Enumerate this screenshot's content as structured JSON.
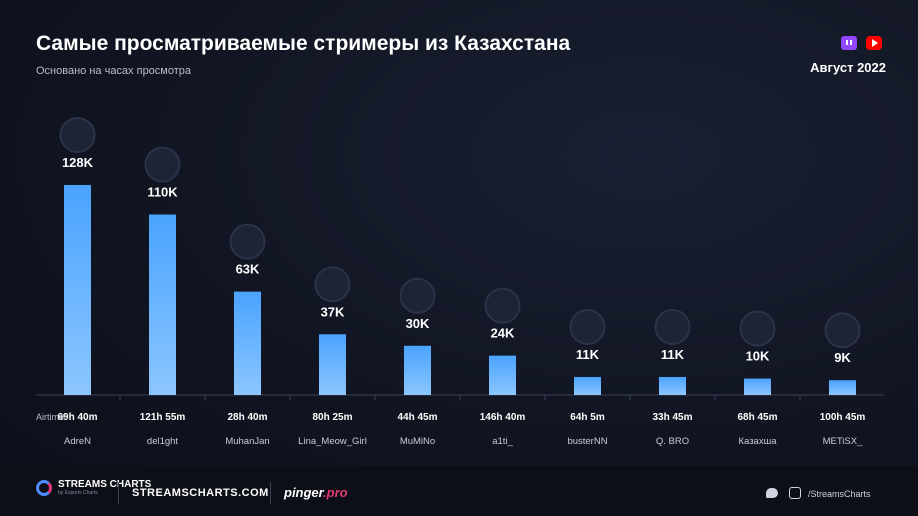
{
  "header": {
    "title": "Самые просматриваемые стримеры из Казахстана",
    "subtitle": "Основано на часах просмотра",
    "period": "Август 2022",
    "platform_icons": [
      "twitch-icon",
      "youtube-icon"
    ]
  },
  "chart_data": {
    "type": "bar",
    "categories": [
      "AdreN",
      "del1ght",
      "MuhanJan",
      "Lina_Meow_Girl",
      "MuMiNo",
      "a1ti_",
      "busterNN",
      "Q. BRO",
      "Казахша",
      "METiSX_"
    ],
    "values": [
      128000,
      110000,
      63000,
      37000,
      30000,
      24000,
      11000,
      11000,
      10000,
      9000
    ],
    "value_labels": [
      "128K",
      "110K",
      "63K",
      "37K",
      "30K",
      "24K",
      "11K",
      "11K",
      "10K",
      "9K"
    ],
    "airtime_label": "Airtime:",
    "airtime": [
      "69h 40m",
      "121h 55m",
      "28h 40m",
      "80h 25m",
      "44h 45m",
      "146h 40m",
      "64h 5m",
      "33h 45m",
      "68h 45m",
      "100h 45m"
    ],
    "ylim": [
      0,
      128000
    ],
    "grid": false,
    "bar_color": "#4a9cff"
  },
  "footer": {
    "logo_text": "STREAMS CHARTS",
    "logo_sub": "by Esports Charts",
    "site": "STREAMSCHARTS.COM",
    "partner_main": "pinger",
    "partner_suffix": ".pro",
    "social_icons": [
      "twitter-icon",
      "instagram-icon"
    ],
    "handle": "/StreamsCharts"
  }
}
